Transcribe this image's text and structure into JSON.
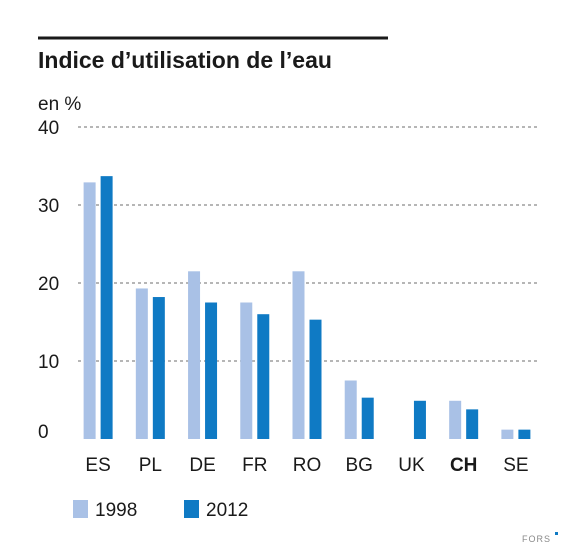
{
  "chart_data": {
    "type": "bar",
    "title": "Indice d’utilisation de l’eau",
    "unit_label": "en %",
    "categories": [
      "ES",
      "PL",
      "DE",
      "FR",
      "RO",
      "BG",
      "UK",
      "CH",
      "SE"
    ],
    "highlight_category": "CH",
    "series": [
      {
        "name": "1998",
        "color": "#a9c1e6",
        "values": [
          32.9,
          19.3,
          21.5,
          17.5,
          21.5,
          7.5,
          null,
          4.9,
          1.2
        ]
      },
      {
        "name": "2012",
        "color": "#0f7ac4",
        "values": [
          33.7,
          18.2,
          17.5,
          16.0,
          15.3,
          5.3,
          4.9,
          3.8,
          1.2
        ]
      }
    ],
    "yticks": [
      0,
      10,
      20,
      30,
      40
    ],
    "ylim": [
      0,
      40
    ],
    "grid": true,
    "legend_position": "bottom-left"
  },
  "credit": "FORS"
}
